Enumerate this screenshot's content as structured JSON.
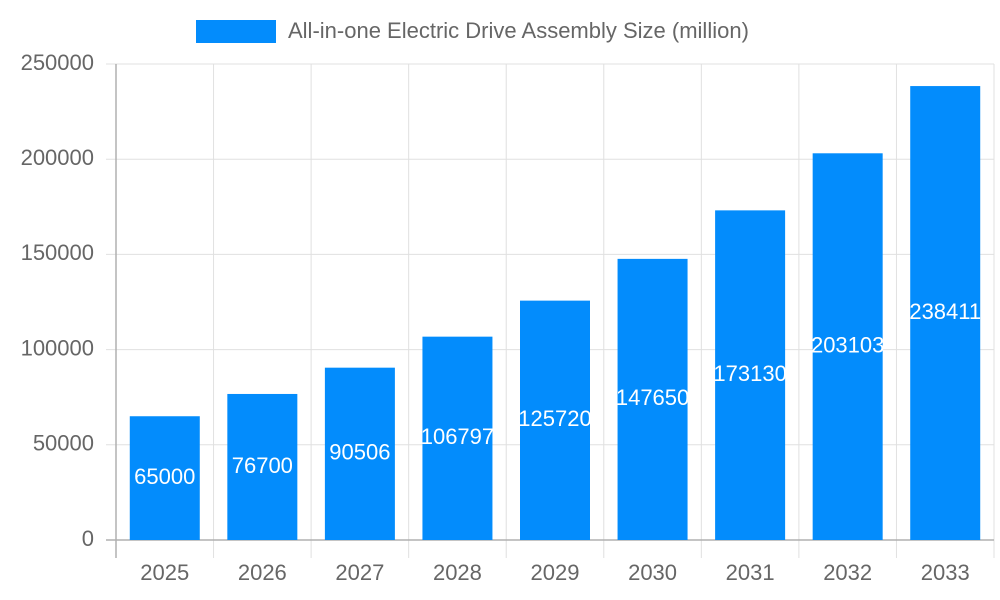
{
  "chart_data": {
    "type": "bar",
    "categories": [
      "2025",
      "2026",
      "2027",
      "2028",
      "2029",
      "2030",
      "2031",
      "2032",
      "2033"
    ],
    "series": [
      {
        "name": "All-in-one Electric Drive Assembly Size (million)",
        "color": "#038cfc",
        "values": [
          65000,
          76700,
          90506,
          106797,
          125720,
          147650,
          173130,
          203103,
          238411
        ]
      }
    ],
    "ylim": [
      0,
      250000
    ],
    "yticks": [
      0,
      50000,
      100000,
      150000,
      200000,
      250000
    ],
    "grid": true,
    "legend": "top"
  }
}
